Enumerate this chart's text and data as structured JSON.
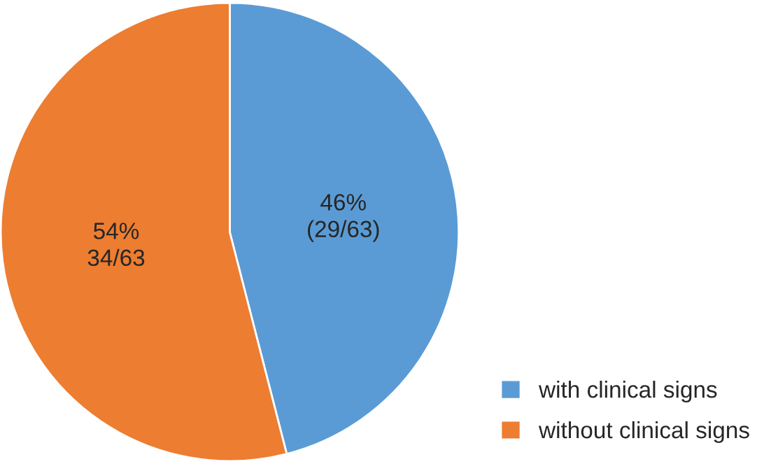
{
  "chart_data": {
    "type": "pie",
    "categories": [
      "with clinical signs",
      "without clinical signs"
    ],
    "values": [
      46,
      54
    ],
    "value_labels": [
      "46%\n(29/63)",
      "54%\n34/63"
    ],
    "colors": [
      "#5b9bd5",
      "#ed7d31"
    ],
    "legend": "bottom right"
  }
}
